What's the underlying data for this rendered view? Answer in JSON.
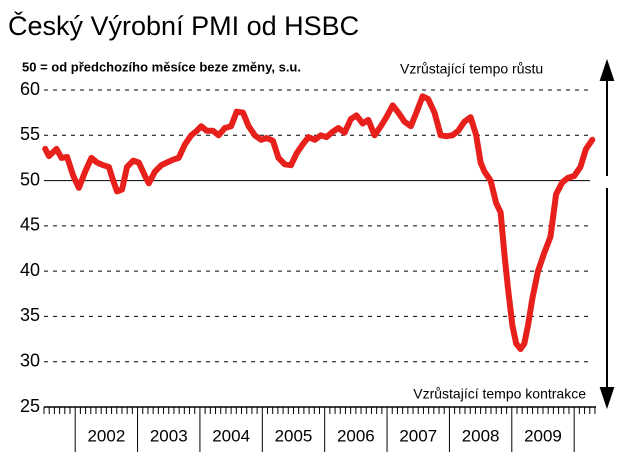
{
  "chart_data": {
    "type": "line",
    "title": "Český Výrobní PMI od HSBC",
    "subtitle": "50 = od předchozího měsíce beze změny, s.u.",
    "annotations": [
      "Vzrůstající tempo růstu",
      "Vzrůstající tempo kontrakce"
    ],
    "year_labels": [
      "2002",
      "2003",
      "2004",
      "2005",
      "2006",
      "2007",
      "2008",
      "2009"
    ],
    "xlim": [
      2001.5,
      2010.35
    ],
    "xticks": [
      2002,
      2003,
      2004,
      2005,
      2006,
      2007,
      2008,
      2009,
      2010
    ],
    "ylim": [
      25,
      60
    ],
    "yticks": [
      25,
      30,
      35,
      40,
      45,
      50,
      55,
      60
    ],
    "reference_line": 50,
    "grid": true,
    "series": [
      {
        "color": "#e8201c",
        "x": [
          2001.52,
          2001.58,
          2001.7,
          2001.78,
          2001.87,
          2001.97,
          2002.06,
          2002.16,
          2002.26,
          2002.35,
          2002.45,
          2002.54,
          2002.61,
          2002.67,
          2002.75,
          2002.83,
          2002.93,
          2003.02,
          2003.12,
          2003.18,
          2003.28,
          2003.38,
          2003.47,
          2003.57,
          2003.66,
          2003.76,
          2003.86,
          2003.95,
          2004.02,
          2004.11,
          2004.21,
          2004.3,
          2004.4,
          2004.5,
          2004.59,
          2004.69,
          2004.78,
          2004.88,
          2004.98,
          2005.07,
          2005.17,
          2005.26,
          2005.36,
          2005.46,
          2005.55,
          2005.65,
          2005.74,
          2005.84,
          2005.94,
          2006.03,
          2006.13,
          2006.22,
          2006.32,
          2006.42,
          2006.51,
          2006.61,
          2006.7,
          2006.8,
          2006.9,
          2006.99,
          2007.09,
          2007.18,
          2007.28,
          2007.38,
          2007.47,
          2007.57,
          2007.66,
          2007.76,
          2007.86,
          2007.95,
          2008.05,
          2008.14,
          2008.24,
          2008.34,
          2008.43,
          2008.5,
          2008.56,
          2008.66,
          2008.75,
          2008.82,
          2008.88,
          2008.94,
          2009.01,
          2009.07,
          2009.14,
          2009.2,
          2009.26,
          2009.33,
          2009.42,
          2009.52,
          2009.62,
          2009.71,
          2009.81,
          2009.9,
          2010.0,
          2010.1,
          2010.19,
          2010.29
        ],
        "values": [
          53.5,
          52.7,
          53.5,
          52.5,
          52.6,
          50.5,
          49.2,
          51,
          52.5,
          52,
          51.7,
          51.5,
          50,
          48.8,
          49,
          51.5,
          52.2,
          52,
          50.5,
          49.7,
          51,
          51.7,
          52,
          52.3,
          52.5,
          54,
          55,
          55.5,
          56,
          55.5,
          55.5,
          55,
          55.8,
          56,
          57.6,
          57.5,
          56,
          55,
          54.5,
          54.7,
          54.4,
          52.5,
          51.8,
          51.7,
          53,
          54,
          54.8,
          54.5,
          55,
          54.8,
          55.4,
          55.8,
          55.3,
          56.8,
          57.2,
          56.3,
          56.7,
          55,
          56,
          57,
          58.3,
          57.5,
          56.5,
          56,
          57.5,
          59.3,
          59,
          57.5,
          55,
          54.9,
          55,
          55.5,
          56.5,
          57,
          55,
          52,
          51,
          50,
          47.5,
          46.5,
          42,
          38,
          34,
          32,
          31.4,
          32,
          34,
          37,
          40,
          42,
          43.8,
          48.5,
          49.8,
          50.3,
          50.5,
          51.5,
          53.5,
          54.5
        ]
      }
    ]
  }
}
